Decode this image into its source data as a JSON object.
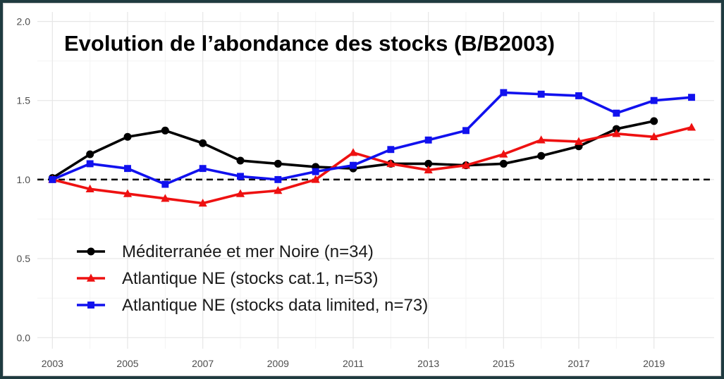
{
  "chart_data": {
    "type": "line",
    "title": "Evolution de l’abondance  des stocks (B/B2003)",
    "xlabel": "",
    "ylabel": "",
    "xlim": [
      2002.6,
      2020.6
    ],
    "ylim": [
      -0.07,
      2.06
    ],
    "x_ticks": [
      2003,
      2005,
      2007,
      2009,
      2011,
      2013,
      2015,
      2017,
      2019
    ],
    "x_tick_labels": [
      "2003",
      "2005",
      "2007",
      "2009",
      "2011",
      "2013",
      "2015",
      "2017",
      "2019"
    ],
    "y_ticks": [
      0.0,
      0.5,
      1.0,
      1.5,
      2.0
    ],
    "y_tick_labels": [
      "0.0",
      "0.5",
      "1.0",
      "1.5",
      "2.0"
    ],
    "grid": true,
    "legend_position": "bottom-left",
    "reference_line": {
      "y": 1.0,
      "style": "dashed",
      "color": "#000000"
    },
    "series": [
      {
        "name": "Méditerranée et mer Noire (n=34)",
        "color": "#000000",
        "marker": "circle",
        "x": [
          2003,
          2004,
          2005,
          2006,
          2007,
          2008,
          2009,
          2010,
          2011,
          2012,
          2013,
          2014,
          2015,
          2016,
          2017,
          2018,
          2019
        ],
        "y": [
          1.01,
          1.16,
          1.27,
          1.31,
          1.23,
          1.12,
          1.1,
          1.08,
          1.07,
          1.1,
          1.1,
          1.09,
          1.1,
          1.15,
          1.21,
          1.32,
          1.37
        ]
      },
      {
        "name": "Atlantique NE (stocks cat.1, n=53)",
        "color": "#ee1111",
        "marker": "triangle",
        "x": [
          2003,
          2004,
          2005,
          2006,
          2007,
          2008,
          2009,
          2010,
          2011,
          2012,
          2013,
          2014,
          2015,
          2016,
          2017,
          2018,
          2019,
          2020
        ],
        "y": [
          1.0,
          0.94,
          0.91,
          0.88,
          0.85,
          0.91,
          0.93,
          1.0,
          1.17,
          1.1,
          1.06,
          1.09,
          1.16,
          1.25,
          1.24,
          1.29,
          1.27,
          1.33
        ]
      },
      {
        "name": "Atlantique NE (stocks data limited, n=73)",
        "color": "#1111ee",
        "marker": "square",
        "x": [
          2003,
          2004,
          2005,
          2006,
          2007,
          2008,
          2009,
          2010,
          2011,
          2012,
          2013,
          2014,
          2015,
          2016,
          2017,
          2018,
          2019,
          2020
        ],
        "y": [
          1.0,
          1.1,
          1.07,
          0.97,
          1.07,
          1.02,
          1.0,
          1.05,
          1.09,
          1.19,
          1.25,
          1.31,
          1.55,
          1.54,
          1.53,
          1.42,
          1.5,
          1.52
        ]
      }
    ]
  }
}
